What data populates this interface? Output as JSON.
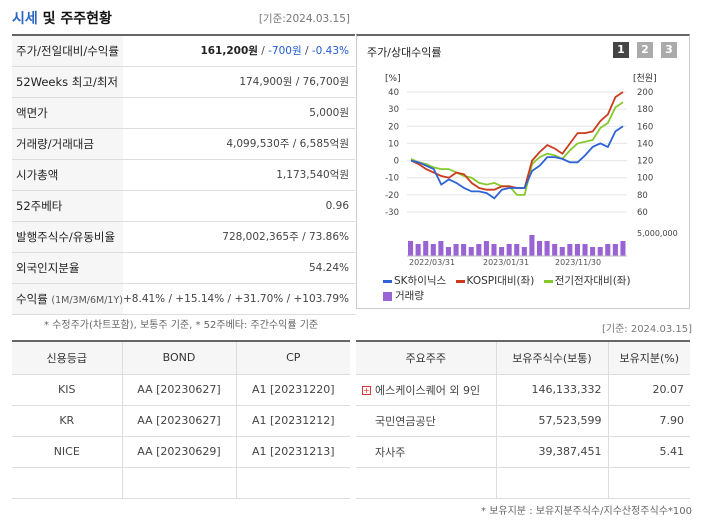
{
  "header": {
    "title_part1": "시세",
    "title_part2": " 및 주주현황",
    "date": "[기준:2024.03.15]"
  },
  "info": {
    "price_label": "주가/전일대비/수익률",
    "price_value": "161,200원",
    "price_change": "-700원",
    "price_pct": "-0.43%",
    "week52_label": "52Weeks 최고/최저",
    "week52_value": "174,900원 / 76,700원",
    "par_label": "액면가",
    "par_value": "5,000원",
    "volume_label": "거래량/거래대금",
    "volume_value": "4,099,530주 / 6,585억원",
    "mcap_label": "시가총액",
    "mcap_value": "1,173,540억원",
    "beta_label": "52주베타",
    "beta_value": "0.96",
    "shares_label": "발행주식수/유동비율",
    "shares_value": "728,002,365주 / 73.86%",
    "foreign_label": "외국인지분율",
    "foreign_value": "54.24%",
    "return_label": "수익률",
    "return_sub": "(1M/3M/6M/1Y)",
    "return_1m": "+8.41%",
    "return_3m": "+15.14%",
    "return_6m": "+31.70%",
    "return_1y": "+103.79%",
    "sep": " / "
  },
  "note1": "* 수정주가(차트포함), 보통주 기준, * 52주베타: 주간수익률 기준",
  "chart": {
    "title": "주가/상대수익률",
    "tabs": [
      "1",
      "2",
      "3"
    ],
    "left_unit": "[%]",
    "right_unit": "[천원]",
    "vol_label": "5,000,000",
    "legend": {
      "sk": "SK하이닉스",
      "kospi": "KOSPI대비(좌)",
      "elec": "전기전자대비(좌)",
      "vol": "거래량"
    }
  },
  "chart_data": {
    "type": "line",
    "x_ticks": [
      "2022/03/31",
      "2023/01/31",
      "2023/11/30"
    ],
    "y_left_ticks": [
      40,
      30,
      20,
      10,
      0,
      -10,
      -20,
      -30
    ],
    "y_right_ticks": [
      200,
      180,
      160,
      140,
      120,
      100,
      80,
      60
    ],
    "ylim_left": [
      -30,
      40
    ],
    "ylim_right": [
      60,
      200
    ],
    "colors": {
      "sk": "#2e62d6",
      "kospi": "#cc3a1c",
      "elec": "#86c92d",
      "vol": "#9a63d4"
    },
    "series": [
      {
        "name": "SK하이닉스",
        "axis": "left",
        "values": [
          0,
          -1,
          -3,
          -5,
          -14,
          -11,
          -13,
          -16,
          -18,
          -18,
          -19,
          -22,
          -17,
          -16,
          -16,
          -16,
          -6,
          -3,
          2,
          2,
          1,
          -1,
          -1,
          3,
          8,
          10,
          8,
          17,
          20
        ]
      },
      {
        "name": "KOSPI대비(좌)",
        "axis": "left",
        "values": [
          0,
          -2,
          -5,
          -7,
          -9,
          -10,
          -7,
          -8,
          -13,
          -16,
          -17,
          -17,
          -15,
          -15,
          -16,
          -16,
          0,
          5,
          9,
          7,
          4,
          10,
          16,
          16,
          17,
          23,
          27,
          37,
          40
        ]
      },
      {
        "name": "전기전자대비(좌)",
        "axis": "left",
        "values": [
          1,
          -1,
          -2,
          -4,
          -5,
          -5,
          -7,
          -9,
          -10,
          -13,
          -14,
          -13,
          -15,
          -15,
          -20,
          -20,
          -2,
          2,
          4,
          3,
          1,
          6,
          10,
          11,
          12,
          19,
          22,
          31,
          34
        ]
      }
    ],
    "volume": [
      5,
      4,
      5,
      4,
      5,
      3,
      4,
      4,
      3,
      4,
      5,
      4,
      3,
      4,
      4,
      3,
      7,
      5,
      5,
      4,
      3,
      4,
      4,
      4,
      3,
      3,
      4,
      4,
      5
    ]
  },
  "note_date2": "[기준: 2024.03.15]",
  "credit": {
    "headers": [
      "신용등급",
      "BOND",
      "CP"
    ],
    "rows": [
      [
        "KIS",
        "AA  [20230627]",
        "A1  [20231220]"
      ],
      [
        "KR",
        "AA  [20230627]",
        "A1  [20231212]"
      ],
      [
        "NICE",
        "AA  [20230629]",
        "A1  [20231213]"
      ]
    ]
  },
  "holders": {
    "headers": [
      "주요주주",
      "보유주식수(보통)",
      "보유지분(%)"
    ],
    "rows": [
      [
        "에스케이스퀘어 외 9인",
        "146,133,332",
        "20.07"
      ],
      [
        "국민연금공단",
        "57,523,599",
        "7.90"
      ],
      [
        "자사주",
        "39,387,451",
        "5.41"
      ]
    ]
  },
  "note2": "* 보유지분 : 보유지분주식수/지수산정주식수*100"
}
